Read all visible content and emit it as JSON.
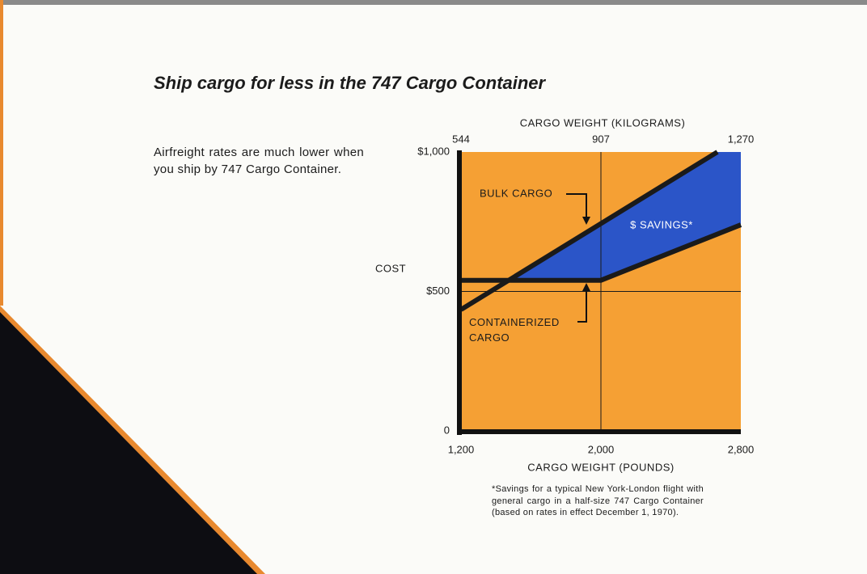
{
  "chart_data": {
    "type": "line",
    "title": "Ship cargo for less in the 747 Cargo Container",
    "description": "Airfreight rates are much lower when you ship by 747 Cargo Container.",
    "footnote": "*Savings for a typical New York-London flight with general cargo in a half-size 747 Cargo Container (based on rates in effect December 1, 1970).",
    "x_label": "CARGO WEIGHT (POUNDS)",
    "x2_label": "CARGO WEIGHT (KILOGRAMS)",
    "y_label": "COST",
    "xlim": [
      1200,
      2800
    ],
    "xticks": [
      {
        "value": 1200,
        "label": "1,200"
      },
      {
        "value": 2000,
        "label": "2,000"
      },
      {
        "value": 2800,
        "label": "2,800"
      }
    ],
    "x2lim": [
      544,
      1270
    ],
    "x2ticks": [
      544,
      907,
      {
        "value": 1270,
        "label": "1,270"
      }
    ],
    "ylim": [
      0,
      1000
    ],
    "yticks": [
      0,
      {
        "value": 500,
        "label": "$500"
      },
      {
        "value": 1000,
        "label": "$1,000"
      }
    ],
    "grid": true,
    "background_color": "#f5a034",
    "series": [
      {
        "name": "BULK CARGO",
        "color": "#1a1a1a",
        "x": [
          1200,
          2666
        ],
        "values": [
          435,
          1000
        ]
      },
      {
        "name": "CONTAINERIZED CARGO",
        "color": "#1a1a1a",
        "x": [
          1200,
          2000,
          2800
        ],
        "values": [
          540,
          540,
          739
        ]
      }
    ],
    "fill_between": {
      "label": "$ SAVINGS*",
      "color": "#2b55c8"
    }
  }
}
